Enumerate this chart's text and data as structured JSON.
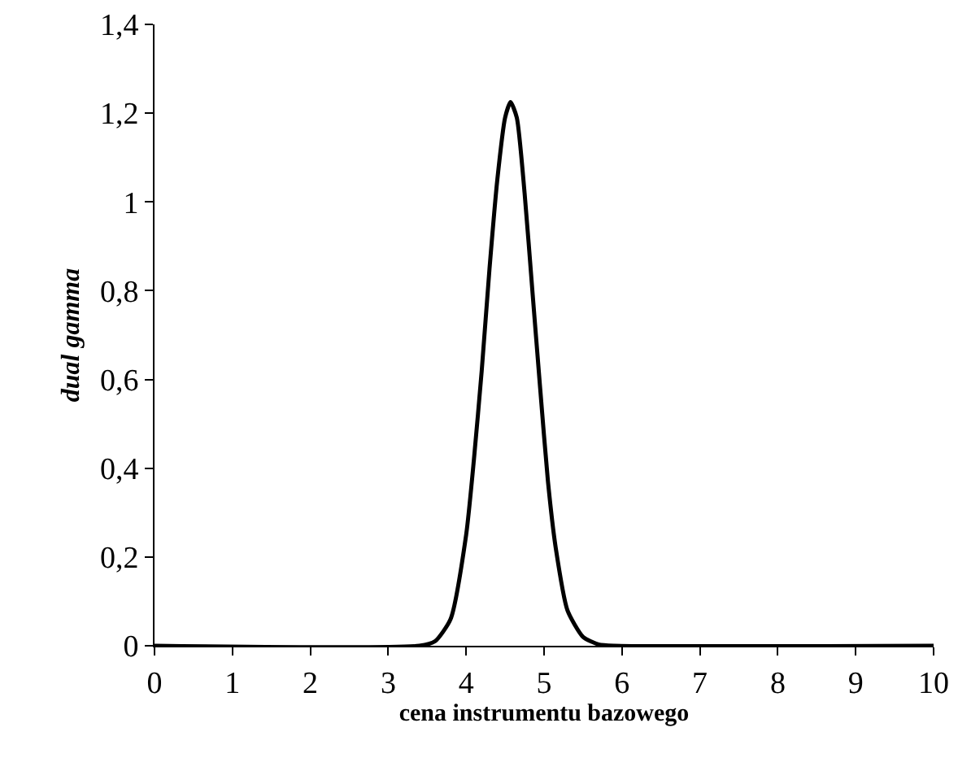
{
  "chart_data": {
    "type": "line",
    "xlabel": "cena instrumentu bazowego",
    "ylabel": "dual gamma",
    "x": [
      0,
      3.4,
      3.6,
      3.8,
      4.0,
      4.1,
      4.2,
      4.3,
      4.4,
      4.5,
      4.57,
      4.65,
      4.75,
      4.85,
      4.95,
      5.05,
      5.15,
      5.3,
      5.5,
      5.7,
      5.9,
      10
    ],
    "series": [
      {
        "color": "#000000",
        "values": [
          0,
          0,
          0.01,
          0.06,
          0.25,
          0.42,
          0.62,
          0.85,
          1.05,
          1.19,
          1.225,
          1.19,
          1.02,
          0.8,
          0.58,
          0.37,
          0.22,
          0.08,
          0.02,
          0.003,
          0,
          0
        ]
      }
    ],
    "xlim": [
      0,
      10
    ],
    "xticks": [
      0,
      1,
      2,
      3,
      4,
      5,
      6,
      7,
      8,
      9,
      10
    ],
    "ylim": [
      0,
      1.4
    ],
    "yticks": [
      0,
      {
        "value": 0.2,
        "label": "0,2"
      },
      {
        "value": 0.4,
        "label": "0,4"
      },
      {
        "value": 0.6,
        "label": "0,6"
      },
      {
        "value": 0.8,
        "label": "0,8"
      },
      1,
      {
        "value": 1.2,
        "label": "1,2"
      },
      {
        "value": 1.4,
        "label": "1,4"
      }
    ],
    "grid": false,
    "legend": false,
    "marker": "none",
    "line_style": "solid"
  }
}
